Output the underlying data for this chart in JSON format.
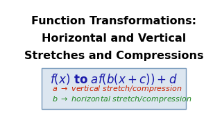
{
  "title_line1": "Function Transformations:",
  "title_line2": "Horizontal and Vertical",
  "title_line3": "Stretches and Compressions",
  "bg_color": "#ffffff",
  "box_bg": "#dce6f0",
  "box_edge": "#7799bb",
  "title_color": "#000000",
  "formula_color": "#1a1aaa",
  "a_color": "#cc2200",
  "b_color": "#228822",
  "note1_color": "#cc2200",
  "note2_color": "#228822",
  "title_fontsize": 11.5,
  "formula_fontsize": 12,
  "note_fontsize": 8.0
}
